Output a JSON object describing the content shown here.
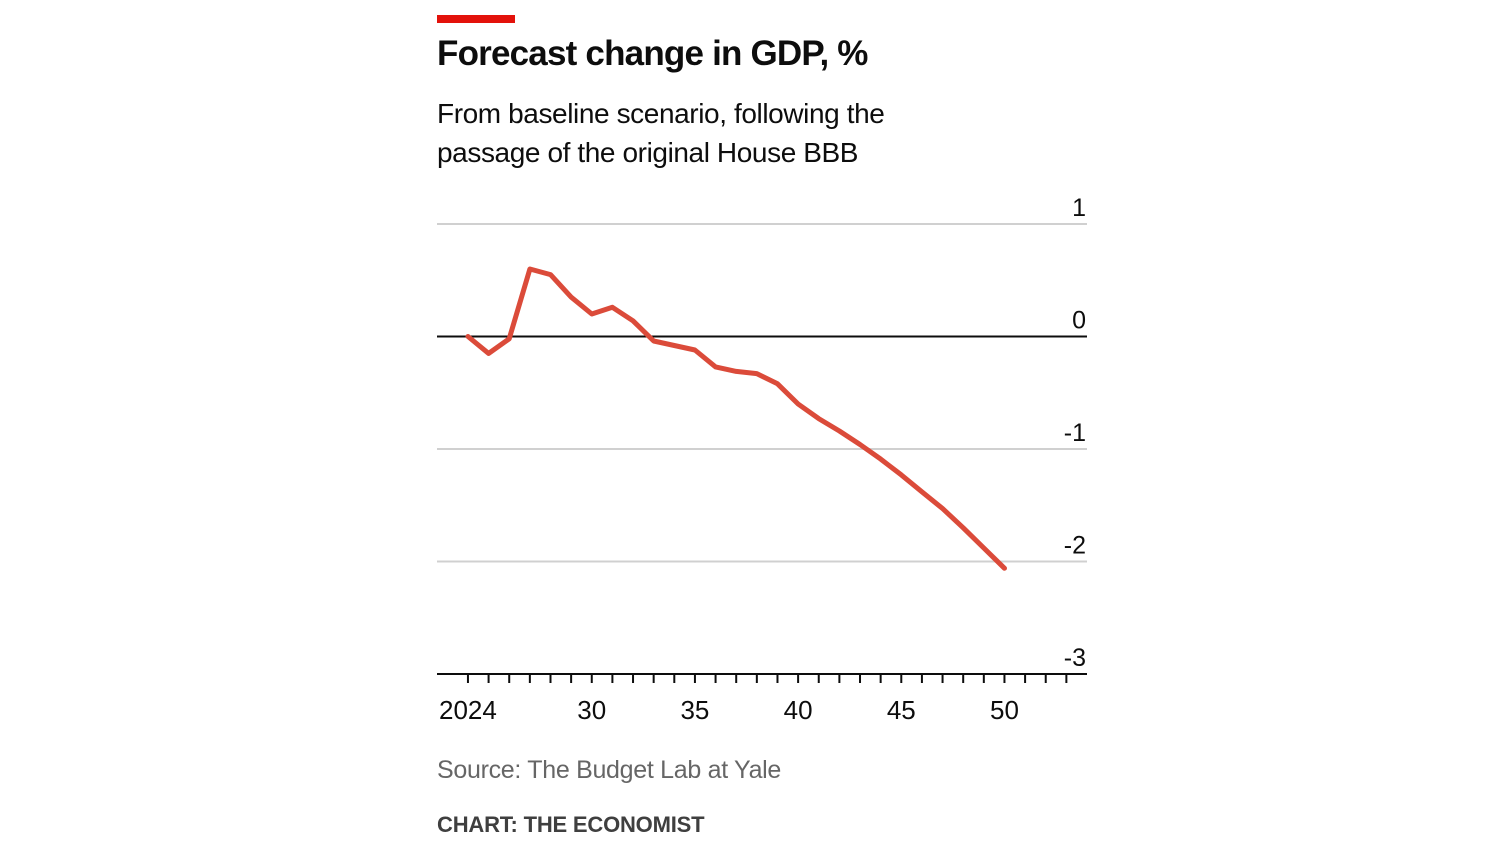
{
  "colors": {
    "accent": "#e3120b",
    "series": "#db4b3a",
    "grid": "#d0d0d0",
    "zero_line": "#0d0d0d",
    "axis": "#0d0d0d",
    "text": "#0d0d0d",
    "source_text": "#666666"
  },
  "chart_data": {
    "type": "line",
    "title": "Forecast change in GDP, %",
    "subtitle": "From baseline scenario, following the passage of the original House BBB",
    "xlabel": "",
    "ylabel": "",
    "xlim": [
      2022.5,
      2054
    ],
    "ylim": [
      -3,
      1
    ],
    "y_ticks": [
      1,
      0,
      -1,
      -2,
      -3
    ],
    "y_tick_labels": [
      "1",
      "0",
      "-1",
      "-2",
      "-3"
    ],
    "x_tick_values": [
      2024,
      2030,
      2035,
      2040,
      2045,
      2050
    ],
    "x_tick_labels": [
      "2024",
      "30",
      "35",
      "40",
      "45",
      "50"
    ],
    "x_minor_ticks": [
      2024,
      2025,
      2026,
      2027,
      2028,
      2029,
      2030,
      2031,
      2032,
      2033,
      2034,
      2035,
      2036,
      2037,
      2038,
      2039,
      2040,
      2041,
      2042,
      2043,
      2044,
      2045,
      2046,
      2047,
      2048,
      2049,
      2050,
      2051,
      2052,
      2053
    ],
    "grid": true,
    "series": [
      {
        "name": "Forecast change in GDP",
        "x": [
          2024,
          2025,
          2026,
          2027,
          2028,
          2029,
          2030,
          2031,
          2032,
          2033,
          2034,
          2035,
          2036,
          2037,
          2038,
          2039,
          2040,
          2041,
          2042,
          2043,
          2044,
          2045,
          2046,
          2047,
          2048,
          2049,
          2050
        ],
        "values": [
          0.0,
          -0.15,
          -0.02,
          0.6,
          0.55,
          0.35,
          0.2,
          0.26,
          0.14,
          -0.04,
          -0.08,
          -0.12,
          -0.27,
          -0.31,
          -0.33,
          -0.42,
          -0.6,
          -0.73,
          -0.84,
          -0.96,
          -1.09,
          -1.23,
          -1.38,
          -1.53,
          -1.7,
          -1.88,
          -2.06
        ]
      }
    ]
  },
  "footer": {
    "source": "Source: The Budget Lab at Yale",
    "credit": "CHART: THE ECONOMIST"
  }
}
